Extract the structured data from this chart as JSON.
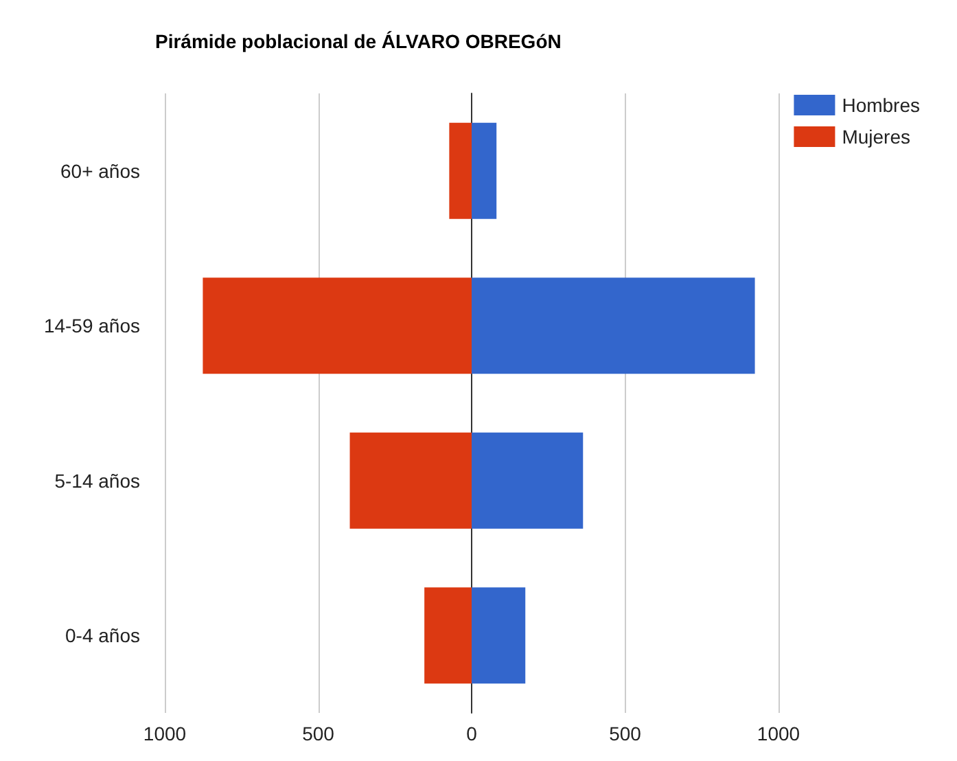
{
  "chart_data": {
    "type": "bar",
    "title": "Pirámide poblacional de ÁLVARO OBREGóN",
    "orientation": "horizontal",
    "stacked": true,
    "categories": [
      "60+ años",
      "14-59 años",
      "5-14 años",
      "0-4 años"
    ],
    "series": [
      {
        "name": "Hombres",
        "color": "#3366cc",
        "values": [
          81,
          923,
          363,
          175
        ]
      },
      {
        "name": "Mujeres",
        "color": "#dc3912",
        "values": [
          -73,
          -876,
          -397,
          -154
        ]
      }
    ],
    "xlim": [
      -1000,
      1000
    ],
    "xticks": [
      {
        "value": -1000,
        "label": "1000"
      },
      {
        "value": -500,
        "label": "500"
      },
      0,
      500,
      1000
    ],
    "grid": "x",
    "legend": "top right"
  }
}
